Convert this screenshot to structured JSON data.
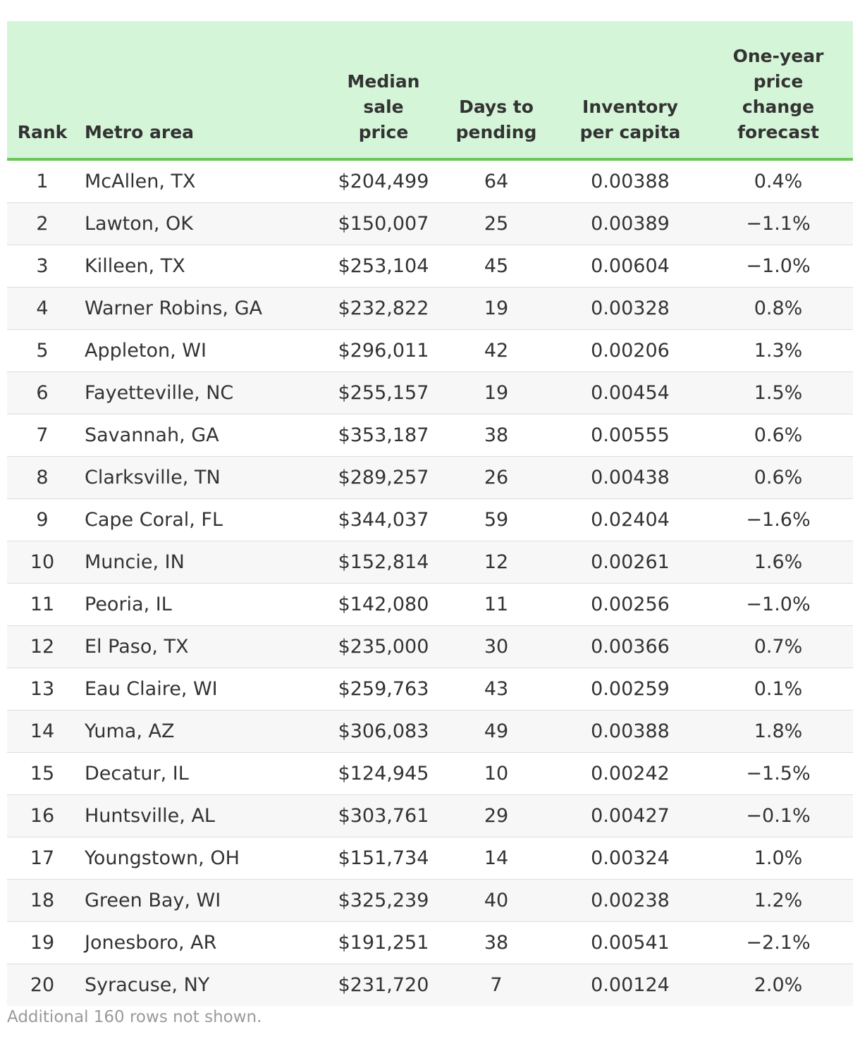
{
  "table": {
    "headers": {
      "rank": "Rank",
      "metro": "Metro area",
      "price": [
        "Median",
        "sale",
        "price"
      ],
      "days": [
        "Days to",
        "pending"
      ],
      "inventory": [
        "Inventory",
        "per capita"
      ],
      "forecast": [
        "One-year",
        "price",
        "change",
        "forecast"
      ]
    },
    "rows": [
      {
        "rank": "1",
        "metro": "McAllen, TX",
        "price": "$204,499",
        "days": "64",
        "inventory": "0.00388",
        "forecast": "0.4%"
      },
      {
        "rank": "2",
        "metro": "Lawton, OK",
        "price": "$150,007",
        "days": "25",
        "inventory": "0.00389",
        "forecast": "−1.1%"
      },
      {
        "rank": "3",
        "metro": "Killeen, TX",
        "price": "$253,104",
        "days": "45",
        "inventory": "0.00604",
        "forecast": "−1.0%"
      },
      {
        "rank": "4",
        "metro": "Warner Robins, GA",
        "price": "$232,822",
        "days": "19",
        "inventory": "0.00328",
        "forecast": "0.8%"
      },
      {
        "rank": "5",
        "metro": "Appleton, WI",
        "price": "$296,011",
        "days": "42",
        "inventory": "0.00206",
        "forecast": "1.3%"
      },
      {
        "rank": "6",
        "metro": "Fayetteville, NC",
        "price": "$255,157",
        "days": "19",
        "inventory": "0.00454",
        "forecast": "1.5%"
      },
      {
        "rank": "7",
        "metro": "Savannah, GA",
        "price": "$353,187",
        "days": "38",
        "inventory": "0.00555",
        "forecast": "0.6%"
      },
      {
        "rank": "8",
        "metro": "Clarksville, TN",
        "price": "$289,257",
        "days": "26",
        "inventory": "0.00438",
        "forecast": "0.6%"
      },
      {
        "rank": "9",
        "metro": "Cape Coral, FL",
        "price": "$344,037",
        "days": "59",
        "inventory": "0.02404",
        "forecast": "−1.6%"
      },
      {
        "rank": "10",
        "metro": "Muncie, IN",
        "price": "$152,814",
        "days": "12",
        "inventory": "0.00261",
        "forecast": "1.6%"
      },
      {
        "rank": "11",
        "metro": "Peoria, IL",
        "price": "$142,080",
        "days": "11",
        "inventory": "0.00256",
        "forecast": "−1.0%"
      },
      {
        "rank": "12",
        "metro": "El Paso, TX",
        "price": "$235,000",
        "days": "30",
        "inventory": "0.00366",
        "forecast": "0.7%"
      },
      {
        "rank": "13",
        "metro": "Eau Claire, WI",
        "price": "$259,763",
        "days": "43",
        "inventory": "0.00259",
        "forecast": "0.1%"
      },
      {
        "rank": "14",
        "metro": "Yuma, AZ",
        "price": "$306,083",
        "days": "49",
        "inventory": "0.00388",
        "forecast": "1.8%"
      },
      {
        "rank": "15",
        "metro": "Decatur, IL",
        "price": "$124,945",
        "days": "10",
        "inventory": "0.00242",
        "forecast": "−1.5%"
      },
      {
        "rank": "16",
        "metro": "Huntsville, AL",
        "price": "$303,761",
        "days": "29",
        "inventory": "0.00427",
        "forecast": "−0.1%"
      },
      {
        "rank": "17",
        "metro": "Youngstown, OH",
        "price": "$151,734",
        "days": "14",
        "inventory": "0.00324",
        "forecast": "1.0%"
      },
      {
        "rank": "18",
        "metro": "Green Bay, WI",
        "price": "$325,239",
        "days": "40",
        "inventory": "0.00238",
        "forecast": "1.2%"
      },
      {
        "rank": "19",
        "metro": "Jonesboro, AR",
        "price": "$191,251",
        "days": "38",
        "inventory": "0.00541",
        "forecast": "−2.1%"
      },
      {
        "rank": "20",
        "metro": "Syracuse, NY",
        "price": "$231,720",
        "days": "7",
        "inventory": "0.00124",
        "forecast": "2.0%"
      }
    ]
  },
  "footer_note": "Additional 160 rows not shown.",
  "colors": {
    "header_background": "#d5f5d8",
    "header_border": "#6bc65a",
    "stripe": "#f7f7f7",
    "text": "#333333",
    "note": "#9a9a9a"
  }
}
